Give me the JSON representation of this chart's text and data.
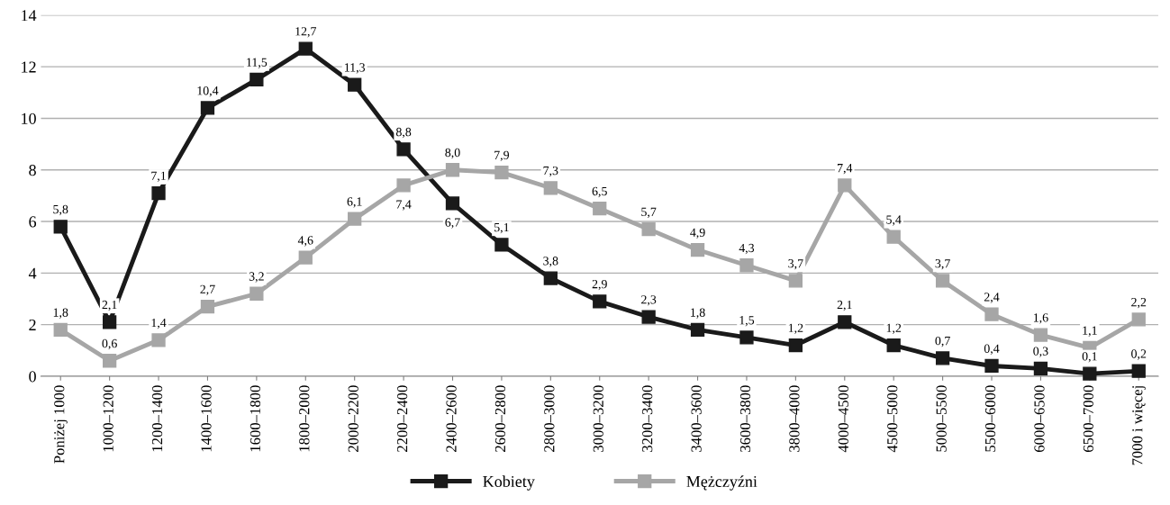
{
  "chart_data": {
    "type": "line",
    "categories": [
      "Poniżej 1000",
      "1000–1200",
      "1200–1400",
      "1400–1600",
      "1600–1800",
      "1800–2000",
      "2000–2200",
      "2200–2400",
      "2400–2600",
      "2600–2800",
      "2800–3000",
      "3000–3200",
      "3200–3400",
      "3400–3600",
      "3600–3800",
      "3800–4000",
      "4000–4500",
      "4500–5000",
      "5000–5500",
      "5500–6000",
      "6000–6500",
      "6500–7000",
      "7000 i więcej"
    ],
    "series": [
      {
        "name": "Kobiety",
        "color": "#1a1a1a",
        "values": [
          5.8,
          2.1,
          7.1,
          10.4,
          11.5,
          12.7,
          11.3,
          8.8,
          6.7,
          5.1,
          3.8,
          2.9,
          2.3,
          1.8,
          1.5,
          1.2,
          2.1,
          1.2,
          0.7,
          0.4,
          0.3,
          0.1,
          0.2
        ],
        "value_labels": [
          "5,8",
          "2,1",
          "7,1",
          "10,4",
          "11,5",
          "12,7",
          "11,3",
          "8,8",
          "6,7",
          "5,1",
          "3,8",
          "2,9",
          "2,3",
          "1,8",
          "1,5",
          "1,2",
          "2,1",
          "1,2",
          "0,7",
          "0,4",
          "0,3",
          "0,1",
          "0,2"
        ]
      },
      {
        "name": "Mężczyźni",
        "color": "#a6a6a6",
        "values": [
          1.8,
          0.6,
          1.4,
          2.7,
          3.2,
          4.6,
          6.1,
          7.4,
          8.0,
          7.9,
          7.3,
          6.5,
          5.7,
          4.9,
          4.3,
          3.7,
          7.4,
          5.4,
          3.7,
          2.4,
          1.6,
          1.1,
          2.2
        ],
        "value_labels": [
          "1,8",
          "0,6",
          "1,4",
          "2,7",
          "3,2",
          "4,6",
          "6,1",
          "7,4",
          "8,0",
          "7,9",
          "7,3",
          "6,5",
          "5,7",
          "4,9",
          "4,3",
          "3,7",
          "7,4",
          "5,4",
          "3,7",
          "2,4",
          "1,6",
          "1,1",
          "2,2"
        ]
      }
    ],
    "ylim": [
      0,
      14
    ],
    "yticks": [
      0,
      2,
      4,
      6,
      8,
      10,
      12,
      14
    ],
    "grid": "y",
    "legend": "bottom",
    "marker": "square",
    "line_style": "solid"
  }
}
